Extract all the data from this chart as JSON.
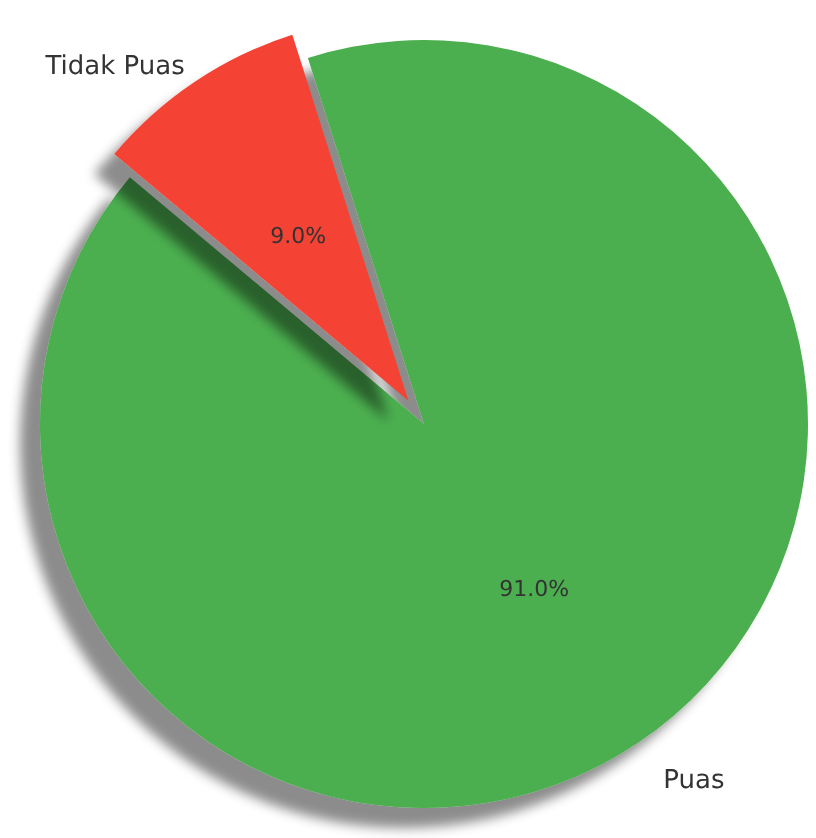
{
  "chart_data": {
    "type": "pie",
    "categories": [
      "Puas",
      "Tidak Puas"
    ],
    "values": [
      91.0,
      9.0
    ],
    "colors": [
      "#4caf50",
      "#f44336"
    ],
    "value_labels": [
      "91.0%",
      "9.0%"
    ],
    "legend": false
  }
}
